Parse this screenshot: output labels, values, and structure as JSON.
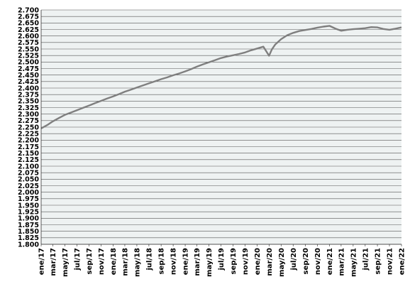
{
  "chart_data": {
    "type": "line",
    "title": "",
    "xlabel": "",
    "ylabel": "",
    "ylim": [
      1.8,
      2.7
    ],
    "y_tick_step": 0.025,
    "y_tick_labels": [
      "1.800",
      "1.825",
      "1.850",
      "1.875",
      "1.900",
      "1.925",
      "1.950",
      "1.975",
      "2.000",
      "2.025",
      "2.050",
      "2.075",
      "2.100",
      "2.125",
      "2.150",
      "2.175",
      "2.200",
      "2.225",
      "2.250",
      "2.275",
      "2.300",
      "2.325",
      "2.350",
      "2.375",
      "2.400",
      "2.425",
      "2.450",
      "2.475",
      "2.500",
      "2.525",
      "2.550",
      "2.575",
      "2.600",
      "2.625",
      "2.650",
      "2.675",
      "2.700"
    ],
    "x_tick_labels": [
      "ene/17",
      "mar/17",
      "may/17",
      "jul/17",
      "sep/17",
      "nov/17",
      "ene/18",
      "mar/18",
      "may/18",
      "jul/18",
      "sep/18",
      "nov/18",
      "ene/19",
      "mar/19",
      "may/19",
      "jul/19",
      "sep/19",
      "nov/19",
      "ene/20",
      "mar/20",
      "may/20",
      "jul/20",
      "sep/20",
      "nov/20",
      "ene/21",
      "mar/21",
      "may/21",
      "jul/21",
      "sep/21",
      "nov/21",
      "ene/22"
    ],
    "grid": {
      "horizontal": true,
      "vertical": false
    },
    "line_color": "#7f7f7f",
    "plot_background": "#eef2f2",
    "gridline_color": "#555555",
    "series": [
      {
        "x": [
          "2017-01",
          "2017-02",
          "2017-03",
          "2017-04",
          "2017-05",
          "2017-06",
          "2017-07",
          "2017-08",
          "2017-09",
          "2017-10",
          "2017-11",
          "2017-12",
          "2018-01",
          "2018-02",
          "2018-03",
          "2018-04",
          "2018-05",
          "2018-06",
          "2018-07",
          "2018-08",
          "2018-09",
          "2018-10",
          "2018-11",
          "2018-12",
          "2019-01",
          "2019-02",
          "2019-03",
          "2019-04",
          "2019-05",
          "2019-06",
          "2019-07",
          "2019-08",
          "2019-09",
          "2019-10",
          "2019-11",
          "2019-12",
          "2020-01",
          "2020-02",
          "2020-03",
          "2020-03-15",
          "2020-04",
          "2020-05",
          "2020-06",
          "2020-07",
          "2020-08",
          "2020-09",
          "2020-10",
          "2020-11",
          "2020-12",
          "2021-01",
          "2021-02",
          "2021-03",
          "2021-04",
          "2021-05",
          "2021-06",
          "2021-07",
          "2021-08",
          "2021-09",
          "2021-10",
          "2021-11",
          "2021-12",
          "2022-01"
        ],
        "values": [
          2.245,
          2.258,
          2.272,
          2.285,
          2.297,
          2.306,
          2.315,
          2.324,
          2.333,
          2.342,
          2.351,
          2.36,
          2.368,
          2.377,
          2.386,
          2.394,
          2.402,
          2.41,
          2.418,
          2.426,
          2.434,
          2.441,
          2.449,
          2.456,
          2.464,
          2.473,
          2.482,
          2.491,
          2.499,
          2.507,
          2.515,
          2.521,
          2.526,
          2.531,
          2.537,
          2.545,
          2.552,
          2.559,
          2.524,
          2.548,
          2.567,
          2.588,
          2.603,
          2.612,
          2.619,
          2.623,
          2.627,
          2.632,
          2.636,
          2.639,
          2.628,
          2.62,
          2.624,
          2.626,
          2.628,
          2.63,
          2.634,
          2.633,
          2.627,
          2.624,
          2.628,
          2.633
        ]
      }
    ]
  }
}
